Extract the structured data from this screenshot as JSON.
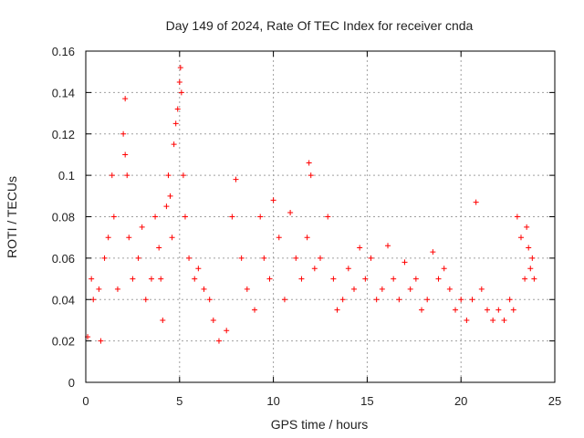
{
  "chart_data": {
    "type": "scatter",
    "title": "Day 149 of 2024, Rate Of TEC Index for receiver cnda",
    "xlabel": "GPS time / hours",
    "ylabel": "ROTI / TECUs",
    "xlim": [
      0,
      25
    ],
    "ylim": [
      0,
      0.16
    ],
    "xticks": [
      0,
      5,
      10,
      15,
      20,
      25
    ],
    "xtick_labels": [
      "0",
      "5",
      "10",
      "15",
      "20",
      "25"
    ],
    "yticks": [
      0,
      0.02,
      0.04,
      0.06,
      0.08,
      0.1,
      0.12,
      0.14,
      0.16
    ],
    "ytick_labels": [
      "0",
      "0.02",
      "0.04",
      "0.06",
      "0.08",
      "0.1",
      "0.12",
      "0.14",
      "0.16"
    ],
    "grid": true,
    "marker": "+",
    "marker_color": "#ff0000",
    "series": [
      {
        "name": "ROTI",
        "x": [
          0.1,
          0.3,
          0.4,
          0.7,
          0.8,
          1.0,
          1.2,
          1.4,
          1.5,
          1.7,
          2.0,
          2.1,
          2.1,
          2.2,
          2.3,
          2.5,
          2.8,
          3.0,
          3.2,
          3.5,
          3.7,
          3.9,
          4.0,
          4.1,
          4.3,
          4.4,
          4.5,
          4.6,
          4.7,
          4.8,
          4.9,
          5.0,
          5.05,
          5.1,
          5.2,
          5.3,
          5.5,
          5.8,
          6.0,
          6.3,
          6.6,
          6.8,
          7.1,
          7.5,
          7.8,
          8.0,
          8.3,
          8.6,
          9.0,
          9.3,
          9.5,
          9.8,
          10.0,
          10.3,
          10.6,
          10.9,
          11.2,
          11.5,
          11.8,
          11.9,
          12.0,
          12.2,
          12.5,
          12.9,
          13.2,
          13.4,
          13.7,
          14.0,
          14.3,
          14.6,
          14.9,
          15.2,
          15.5,
          15.8,
          16.1,
          16.4,
          16.7,
          17.0,
          17.3,
          17.6,
          17.9,
          18.2,
          18.5,
          18.8,
          19.1,
          19.4,
          19.7,
          20.0,
          20.3,
          20.6,
          20.8,
          21.1,
          21.4,
          21.7,
          22.0,
          22.3,
          22.6,
          22.8,
          23.0,
          23.2,
          23.4,
          23.5,
          23.6,
          23.7,
          23.8,
          23.9
        ],
        "y": [
          0.022,
          0.05,
          0.04,
          0.045,
          0.02,
          0.06,
          0.07,
          0.1,
          0.08,
          0.045,
          0.12,
          0.137,
          0.11,
          0.1,
          0.07,
          0.05,
          0.06,
          0.075,
          0.04,
          0.05,
          0.08,
          0.065,
          0.05,
          0.03,
          0.085,
          0.1,
          0.09,
          0.07,
          0.115,
          0.125,
          0.132,
          0.145,
          0.152,
          0.14,
          0.1,
          0.08,
          0.06,
          0.05,
          0.055,
          0.045,
          0.04,
          0.03,
          0.02,
          0.025,
          0.08,
          0.098,
          0.06,
          0.045,
          0.035,
          0.08,
          0.06,
          0.05,
          0.088,
          0.07,
          0.04,
          0.082,
          0.06,
          0.05,
          0.07,
          0.106,
          0.1,
          0.055,
          0.06,
          0.08,
          0.05,
          0.035,
          0.04,
          0.055,
          0.045,
          0.065,
          0.05,
          0.06,
          0.04,
          0.045,
          0.066,
          0.05,
          0.04,
          0.058,
          0.045,
          0.05,
          0.035,
          0.04,
          0.063,
          0.05,
          0.055,
          0.045,
          0.035,
          0.04,
          0.03,
          0.04,
          0.087,
          0.045,
          0.035,
          0.03,
          0.035,
          0.03,
          0.04,
          0.035,
          0.08,
          0.07,
          0.05,
          0.075,
          0.065,
          0.055,
          0.06,
          0.05
        ]
      }
    ]
  }
}
